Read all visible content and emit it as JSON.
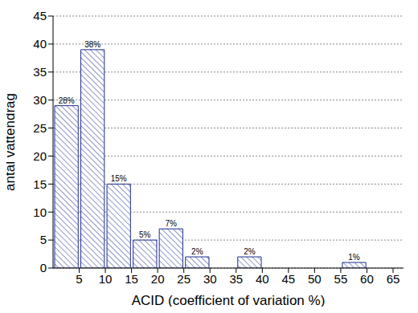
{
  "chart_data": {
    "type": "histogram",
    "x_label": "ACID (coefficient of variation %)",
    "y_label": "antal vattendrag",
    "bins": [
      0,
      5,
      10,
      15,
      20,
      25,
      30,
      35,
      40,
      45,
      50,
      55,
      60,
      65
    ],
    "values": [
      29,
      39,
      15,
      5,
      7,
      2,
      0,
      2,
      0,
      0,
      0,
      1,
      0
    ],
    "bar_labels": [
      "28%",
      "38%",
      "15%",
      "5%",
      "7%",
      "2%",
      null,
      "2%",
      null,
      null,
      null,
      "1%",
      null
    ],
    "xlim": [
      0,
      67
    ],
    "xticks": [
      5,
      10,
      15,
      20,
      25,
      30,
      35,
      40,
      45,
      50,
      55,
      60,
      65
    ],
    "ylim": [
      0,
      45
    ],
    "yticks": [
      0,
      5,
      10,
      15,
      20,
      25,
      30,
      35,
      40,
      45
    ],
    "grid": true,
    "data_labels": true,
    "color": "#1f2f8f"
  }
}
